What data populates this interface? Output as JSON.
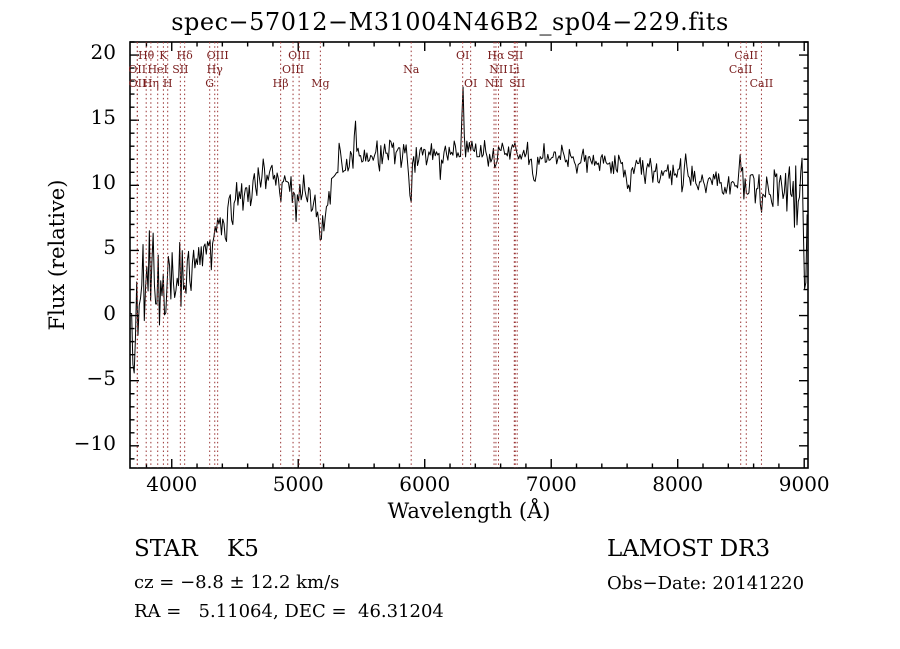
{
  "title": "spec−57012−M31004N46B2_sp04−229.fits",
  "footer": {
    "class_label": "STAR    K5",
    "survey": "LAMOST DR3",
    "cz": "cz = −8.8 ± 12.2 km/s",
    "obs_date": "Obs−Date: 20141220",
    "ra_dec": "RA =   5.11064, DEC =  46.31204"
  },
  "chart_data": {
    "type": "line",
    "title": "spec−57012−M31004N46B2_sp04−229.fits",
    "xlabel": "Wavelength (Å)",
    "ylabel": "Flux (relative)",
    "xlim": [
      3670,
      9030
    ],
    "ylim": [
      -11.7,
      21.0
    ],
    "x_ticks": [
      4000,
      5000,
      6000,
      7000,
      8000,
      9000
    ],
    "y_ticks": [
      -10,
      -5,
      0,
      5,
      10,
      15,
      20
    ],
    "x_minor_step": 200,
    "y_minor_step": 1,
    "grid": false,
    "line_color": "#000000",
    "marker_color": "#993333",
    "marker_label_color": "#7a1f1f",
    "spectrum": {
      "sample_step": 10,
      "seed": 20141220,
      "envelope_wavelength": [
        3670,
        3700,
        3750,
        3800,
        3850,
        3900,
        3950,
        4000,
        4100,
        4200,
        4300,
        4400,
        4500,
        4600,
        4700,
        4800,
        4900,
        5000,
        5100,
        5200,
        5300,
        5400,
        5500,
        5700,
        5900,
        6100,
        6300,
        6500,
        6700,
        6900,
        7100,
        7300,
        7500,
        7700,
        7900,
        8100,
        8300,
        8500,
        8700,
        8900,
        9020
      ],
      "envelope_flux": [
        0.0,
        0.6,
        1.0,
        1.5,
        1.8,
        2.0,
        2.3,
        2.6,
        3.5,
        4.5,
        5.5,
        7.0,
        8.5,
        9.5,
        10.3,
        10.8,
        10.3,
        9.6,
        9.2,
        8.4,
        10.8,
        11.8,
        12.2,
        12.4,
        12.2,
        12.6,
        12.8,
        12.7,
        12.7,
        12.3,
        12.3,
        11.9,
        11.6,
        11.3,
        11.1,
        10.8,
        10.4,
        10.3,
        9.6,
        9.3,
        9.3
      ],
      "envelope_sigma": [
        3.5,
        3.2,
        3.0,
        2.8,
        2.6,
        2.4,
        2.3,
        2.2,
        2.0,
        1.8,
        1.6,
        1.4,
        1.2,
        1.1,
        1.0,
        0.9,
        0.9,
        0.9,
        0.9,
        1.0,
        0.9,
        0.9,
        0.8,
        0.8,
        0.8,
        0.8,
        0.8,
        0.8,
        0.8,
        0.8,
        0.8,
        0.8,
        0.8,
        0.85,
        0.9,
        0.95,
        1.0,
        1.1,
        1.3,
        1.6,
        2.0
      ],
      "features": [
        {
          "wavelength": 3705,
          "delta": -9.0,
          "width": 6
        },
        {
          "wavelength": 4101,
          "delta": -1.5,
          "width": 8
        },
        {
          "wavelength": 4300,
          "delta": -1.2,
          "width": 12
        },
        {
          "wavelength": 4430,
          "delta": -2.2,
          "width": 5
        },
        {
          "wavelength": 4861,
          "delta": -1.5,
          "width": 8
        },
        {
          "wavelength": 4985,
          "delta": -2.0,
          "width": 5
        },
        {
          "wavelength": 5175,
          "delta": -2.6,
          "width": 20
        },
        {
          "wavelength": 5330,
          "delta": 2.2,
          "width": 8
        },
        {
          "wavelength": 5450,
          "delta": 2.4,
          "width": 7
        },
        {
          "wavelength": 5890,
          "delta": -3.5,
          "width": 8
        },
        {
          "wavelength": 6120,
          "delta": -2.2,
          "width": 5
        },
        {
          "wavelength": 6300,
          "delta": 4.5,
          "width": 5
        },
        {
          "wavelength": 6563,
          "delta": -1.3,
          "width": 8
        },
        {
          "wavelength": 6870,
          "delta": -2.4,
          "width": 15
        },
        {
          "wavelength": 7190,
          "delta": -1.0,
          "width": 12
        },
        {
          "wavelength": 7605,
          "delta": -2.0,
          "width": 18
        },
        {
          "wavelength": 7850,
          "delta": -1.5,
          "width": 5
        },
        {
          "wavelength": 8230,
          "delta": -0.8,
          "width": 10
        },
        {
          "wavelength": 8500,
          "delta": 2.2,
          "width": 6
        },
        {
          "wavelength": 8545,
          "delta": -1.3,
          "width": 8
        },
        {
          "wavelength": 8665,
          "delta": -1.4,
          "width": 8
        },
        {
          "wavelength": 9010,
          "delta": -7.0,
          "width": 10
        }
      ]
    },
    "spectral_lines": [
      {
        "label": "OII",
        "wavelength": 3727,
        "row": 2
      },
      {
        "label": "OII",
        "wavelength": 3729,
        "row": 3
      },
      {
        "label": "Hθ",
        "wavelength": 3798,
        "row": 1
      },
      {
        "label": "Hη",
        "wavelength": 3835,
        "row": 3
      },
      {
        "label": "HeI",
        "wavelength": 3889,
        "row": 2
      },
      {
        "label": "K",
        "wavelength": 3934,
        "row": 1
      },
      {
        "label": "H",
        "wavelength": 3968,
        "row": 3
      },
      {
        "label": "SII",
        "wavelength": 4068,
        "row": 2
      },
      {
        "label": "Hδ",
        "wavelength": 4102,
        "row": 1
      },
      {
        "label": "G",
        "wavelength": 4300,
        "row": 3
      },
      {
        "label": "Hγ",
        "wavelength": 4340,
        "row": 2
      },
      {
        "label": "OIII",
        "wavelength": 4363,
        "row": 1
      },
      {
        "label": "Hβ",
        "wavelength": 4861,
        "row": 3
      },
      {
        "label": "OIII",
        "wavelength": 4959,
        "row": 2
      },
      {
        "label": "OIII",
        "wavelength": 5007,
        "row": 1
      },
      {
        "label": "Mg",
        "wavelength": 5175,
        "row": 3
      },
      {
        "label": "Na",
        "wavelength": 5893,
        "row": 2
      },
      {
        "label": "OI",
        "wavelength": 6300,
        "row": 1
      },
      {
        "label": "OI",
        "wavelength": 6363,
        "row": 3
      },
      {
        "label": "NII",
        "wavelength": 6548,
        "row": 3
      },
      {
        "label": "Hα",
        "wavelength": 6563,
        "row": 1
      },
      {
        "label": "NII",
        "wavelength": 6583,
        "row": 2
      },
      {
        "label": "Li",
        "wavelength": 6708,
        "row": 2
      },
      {
        "label": "SII",
        "wavelength": 6716,
        "row": 1
      },
      {
        "label": "SII",
        "wavelength": 6731,
        "row": 3
      },
      {
        "label": "CaII",
        "wavelength": 8498,
        "row": 2
      },
      {
        "label": "CaII",
        "wavelength": 8542,
        "row": 1
      },
      {
        "label": "CaII",
        "wavelength": 8662,
        "row": 3
      }
    ]
  }
}
